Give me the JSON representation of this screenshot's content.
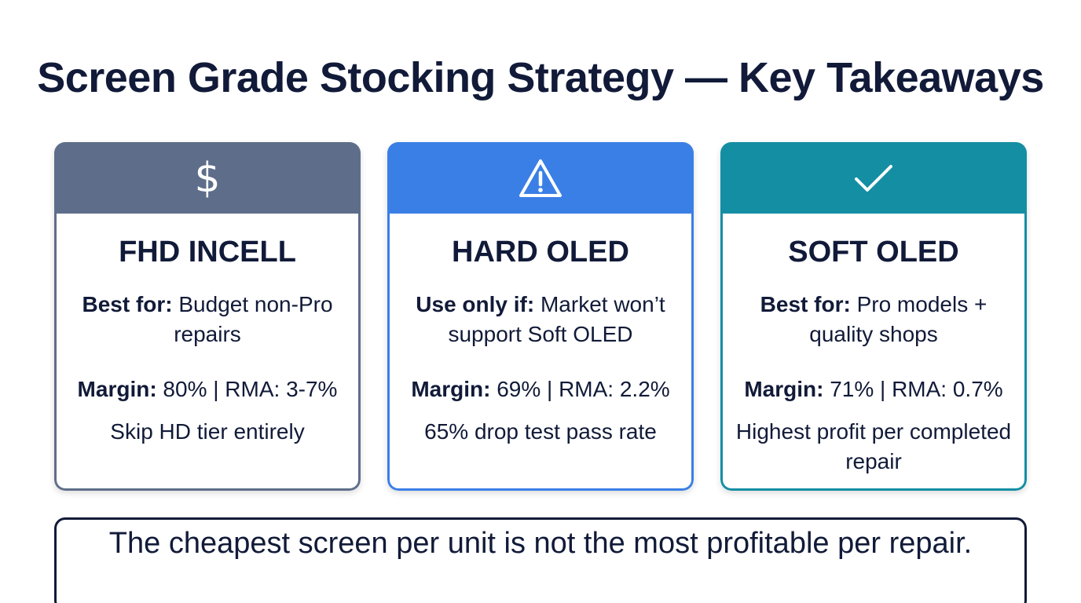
{
  "title": "Screen Grade Stocking Strategy — Key Takeaways",
  "cards": [
    {
      "icon": "dollar-icon",
      "icon_glyph": "$",
      "header_color": "#5e6e8a",
      "title": "FHD INCELL",
      "label": "Best for:",
      "value": " Budget non-Pro repairs",
      "margin_label": "Margin:",
      "margin_value": " 80% | RMA: 3-7%",
      "note": "Skip HD tier entirely"
    },
    {
      "icon": "warning-icon",
      "header_color": "#3a7fe6",
      "title": "HARD OLED",
      "label": "Use only if:",
      "value": " Market won’t support Soft OLED",
      "margin_label": "Margin:",
      "margin_value": " 69% | RMA: 2.2%",
      "note": "65% drop test pass rate"
    },
    {
      "icon": "checkmark-icon",
      "header_color": "#148ea3",
      "title": "SOFT OLED",
      "label": "Best for:",
      "value": " Pro models + quality shops",
      "margin_label": "Margin:",
      "margin_value": " 71% | RMA: 0.7%",
      "note": "Highest profit per completed repair"
    }
  ],
  "bottom_line": "The cheapest screen per unit is not the most profitable per repair."
}
